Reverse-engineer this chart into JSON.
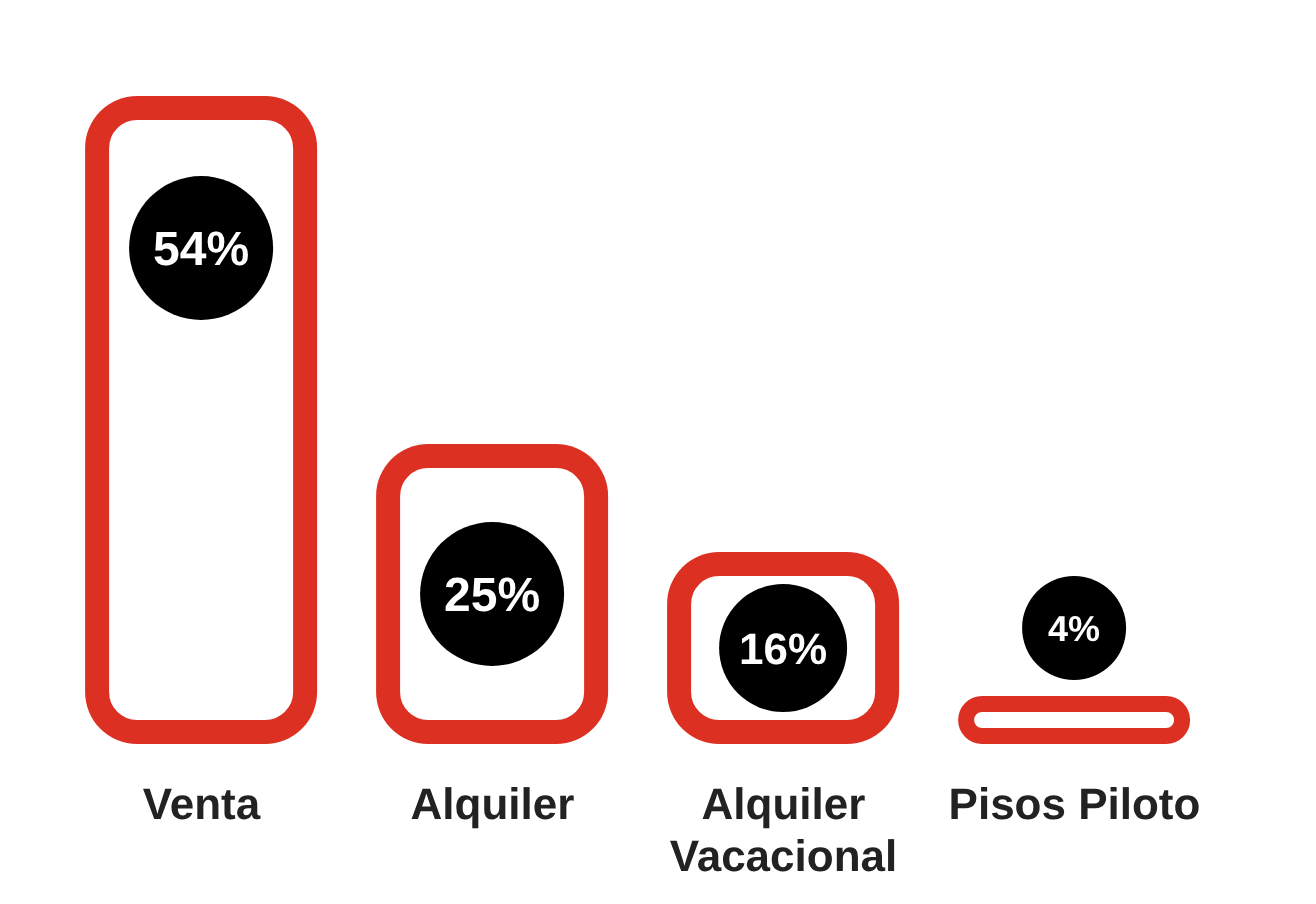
{
  "chart_data": {
    "type": "bar",
    "categories": [
      "Venta",
      "Alquiler",
      "Alquiler Vacacional",
      "Pisos Piloto"
    ],
    "values": [
      54,
      25,
      16,
      4
    ],
    "value_labels": [
      "54%",
      "25%",
      "16%",
      "4%"
    ],
    "color": "#dc3022"
  }
}
